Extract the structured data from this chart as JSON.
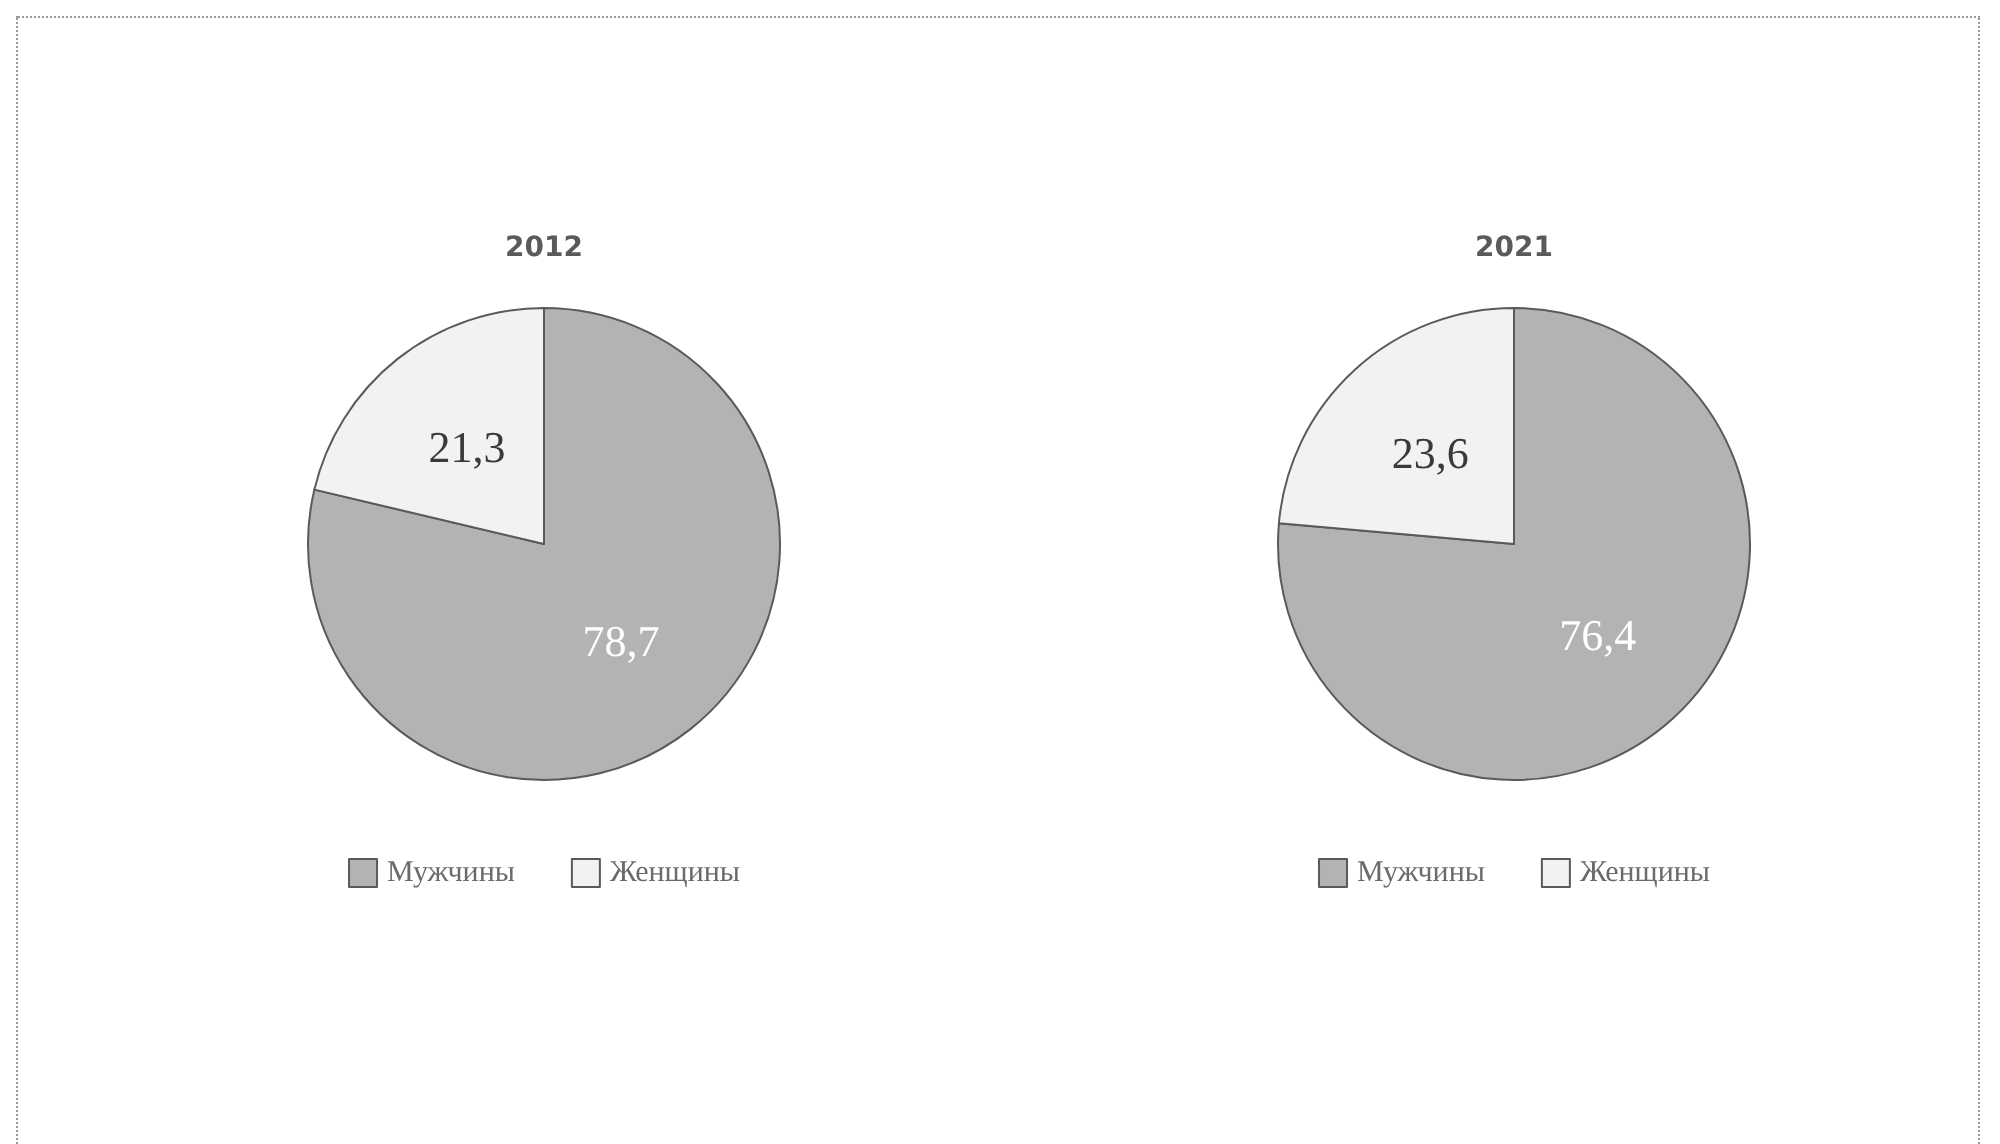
{
  "chart_data": [
    {
      "type": "pie",
      "title": "2012",
      "categories": [
        "Мужчины",
        "Женщины"
      ],
      "values": [
        78.7,
        21.3
      ],
      "colors": [
        "#b3b3b3",
        "#f2f2f2"
      ],
      "value_labels": [
        "78,7",
        "21,3"
      ],
      "legend": "bottom"
    },
    {
      "type": "pie",
      "title": "2021",
      "categories": [
        "Мужчины",
        "Женщины"
      ],
      "values": [
        76.4,
        23.6
      ],
      "colors": [
        "#b3b3b3",
        "#f2f2f2"
      ],
      "value_labels": [
        "76,4",
        "23,6"
      ],
      "legend": "bottom"
    }
  ]
}
